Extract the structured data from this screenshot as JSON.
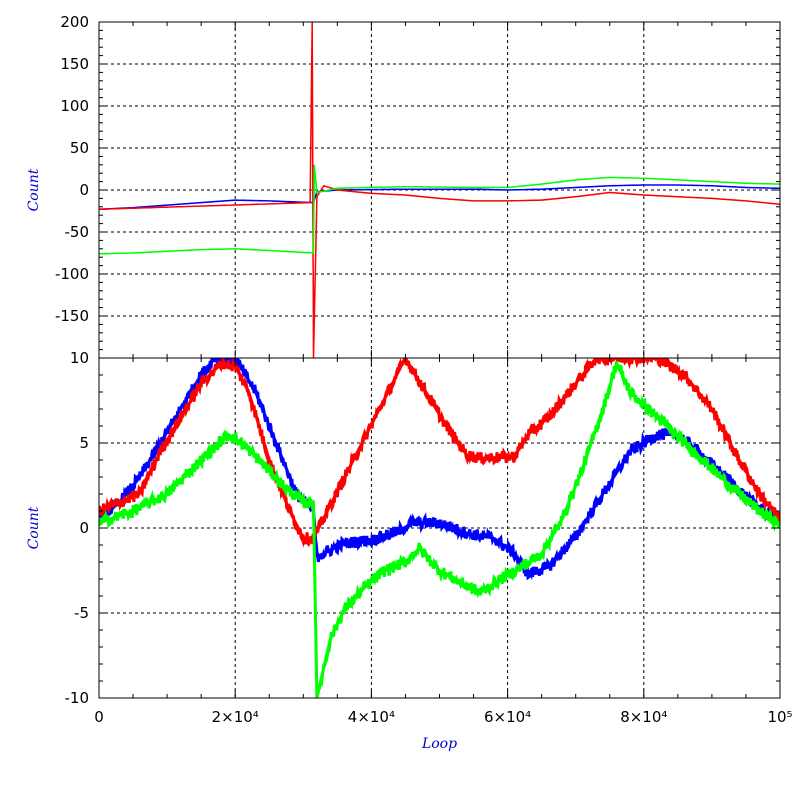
{
  "chart_data": [
    {
      "type": "line",
      "panel": "top",
      "ylabel": "Count",
      "xlabel": "",
      "xlim": [
        0,
        100000
      ],
      "ylim": [
        -200,
        200
      ],
      "yticks": [
        "200",
        "150",
        "100",
        "50",
        "0",
        "-50",
        "-100",
        "-150"
      ],
      "ytick_values": [
        200,
        150,
        100,
        50,
        0,
        -50,
        -100,
        -150
      ],
      "grid": true,
      "series": [
        {
          "color": "#0000ff",
          "x": [
            0,
            5000,
            10000,
            15000,
            20000,
            25000,
            31500,
            32000,
            35000,
            45000,
            55000,
            60000,
            65000,
            70000,
            75000,
            80000,
            85000,
            90000,
            95000,
            100000
          ],
          "y": [
            -23,
            -21,
            -18,
            -15,
            -12,
            -13,
            -15,
            -2,
            0,
            1,
            1,
            0,
            1,
            3,
            5,
            6,
            6,
            5,
            3,
            2
          ]
        },
        {
          "color": "#ff0000",
          "x": [
            0,
            31000,
            31300,
            31500,
            32000,
            33000,
            35000,
            40000,
            45000,
            50000,
            55000,
            60000,
            65000,
            70000,
            75000,
            80000,
            85000,
            90000,
            95000,
            100000
          ],
          "y": [
            -23,
            -15,
            200,
            -200,
            -8,
            5,
            0,
            -4,
            -6,
            -10,
            -13,
            -13,
            -12,
            -8,
            -3,
            -6,
            -8,
            -10,
            -13,
            -17
          ]
        },
        {
          "color": "#00ff00",
          "x": [
            0,
            5000,
            10000,
            15000,
            20000,
            25000,
            31500,
            31600,
            32000,
            35000,
            45000,
            55000,
            60000,
            65000,
            70000,
            75000,
            80000,
            85000,
            90000,
            95000,
            100000
          ],
          "y": [
            -76,
            -75,
            -73,
            -71,
            -70,
            -72,
            -75,
            30,
            -3,
            2,
            4,
            3,
            3,
            7,
            12,
            15,
            14,
            12,
            10,
            8,
            7
          ]
        }
      ]
    },
    {
      "type": "line",
      "panel": "bottom",
      "ylabel": "Count",
      "xlabel": "Loop",
      "xlim": [
        0,
        100000
      ],
      "ylim": [
        -10,
        10
      ],
      "xticks": [
        "0",
        "2×10⁴",
        "4×10⁴",
        "6×10⁴",
        "8×10⁴",
        "10⁵"
      ],
      "xtick_values": [
        0,
        20000,
        40000,
        60000,
        80000,
        100000
      ],
      "yticks": [
        "10",
        "5",
        "0",
        "-5",
        "-10"
      ],
      "ytick_values": [
        10,
        5,
        0,
        -5,
        -10
      ],
      "grid": true,
      "series": [
        {
          "color": "#0000ff",
          "x": [
            0,
            3000,
            6000,
            9000,
            12000,
            15000,
            17000,
            20000,
            23000,
            26000,
            29000,
            31500,
            32000,
            36000,
            40000,
            44000,
            46000,
            50000,
            54000,
            58000,
            61000,
            63000,
            66000,
            70000,
            74000,
            78000,
            82000,
            85000,
            88000,
            92000,
            96000,
            100000
          ],
          "y": [
            0.5,
            1.5,
            3,
            5,
            7,
            9,
            10,
            10,
            8,
            5,
            2,
            1,
            -1.7,
            -0.9,
            -0.7,
            -0.2,
            0.3,
            0.3,
            -0.3,
            -0.6,
            -1.5,
            -2.7,
            -2.3,
            -0.5,
            2,
            4.5,
            5.5,
            5.5,
            4.5,
            3,
            1.5,
            0.3
          ]
        },
        {
          "color": "#ff0000",
          "x": [
            0,
            3000,
            6000,
            9000,
            12000,
            15000,
            18000,
            20000,
            22000,
            25000,
            28000,
            30000,
            31500,
            45000,
            48000,
            51000,
            54000,
            56000,
            61000,
            63000,
            66000,
            70000,
            73000,
            76000,
            82000,
            86000,
            90000,
            94000,
            97000,
            100000
          ],
          "y": [
            1,
            1.5,
            2,
            4.5,
            6.5,
            8.5,
            9.7,
            9.5,
            8,
            4,
            1,
            -0.6,
            -0.6,
            10,
            8,
            6,
            4.3,
            4.1,
            4.2,
            5.5,
            6.5,
            8.5,
            10,
            10,
            10,
            9,
            7,
            4,
            2,
            0.5
          ]
        },
        {
          "color": "#00ff00",
          "x": [
            0,
            5000,
            10000,
            15000,
            19000,
            21000,
            24000,
            27000,
            30000,
            31500,
            32000,
            34000,
            36000,
            39000,
            42000,
            45000,
            47000,
            50000,
            53000,
            56000,
            59000,
            62000,
            65000,
            68000,
            71000,
            74000,
            76000,
            78000,
            82000,
            86000,
            90000,
            94000,
            97000,
            100000
          ],
          "y": [
            0.3,
            1,
            2,
            4,
            5.5,
            5,
            3.8,
            2.5,
            1.5,
            1.5,
            -10,
            -6.5,
            -4.8,
            -3.5,
            -2.5,
            -2,
            -1.2,
            -2.5,
            -3.2,
            -3.8,
            -3,
            -2.3,
            -1.5,
            0.5,
            3.5,
            7,
            9.7,
            8,
            6.5,
            5,
            3.5,
            2,
            1,
            0.2
          ]
        }
      ]
    }
  ]
}
